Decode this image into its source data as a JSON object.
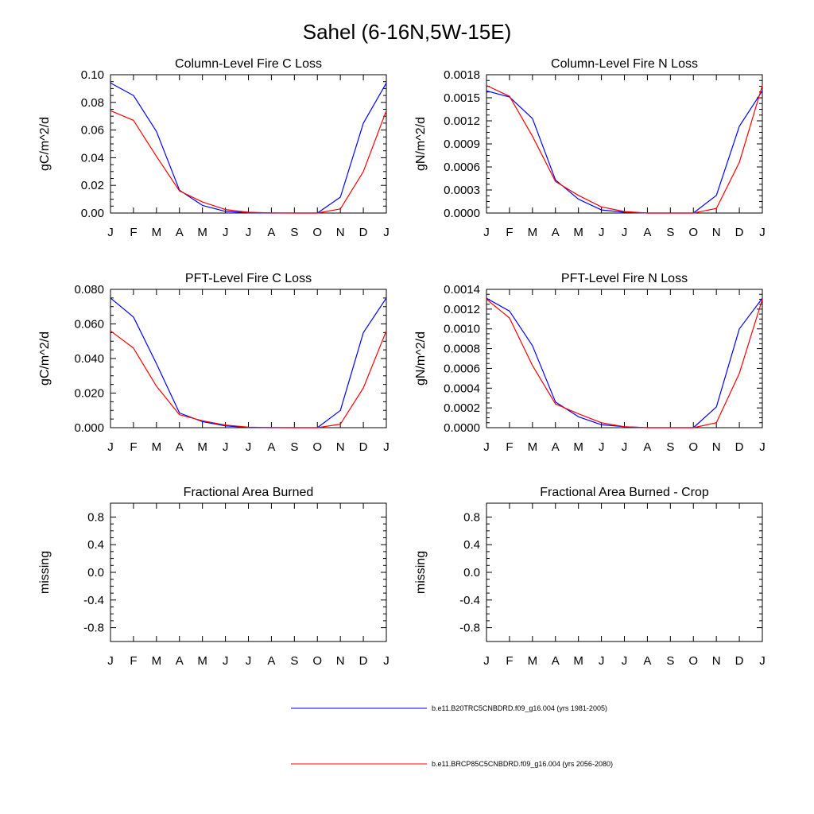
{
  "chart_data": {
    "suptitle": "Sahel (6-16N,5W-15E)",
    "series_colors": [
      "#0000ff",
      "#ff0000"
    ],
    "legend": [
      {
        "label": "b.e11.B20TRC5CNBDRD.f09_g16.004 (yrs 1981-2005)",
        "color": "#0000ff"
      },
      {
        "label": "b.e11.BRCP85C5CNBDRD.f09_g16.004 (yrs 2056-2080)",
        "color": "#ff0000"
      }
    ],
    "panels": [
      {
        "type": "line",
        "title": "Column-Level Fire C Loss",
        "xlabel": "",
        "ylabel": "gC/m^2/d",
        "categories": [
          "J",
          "F",
          "M",
          "A",
          "M",
          "J",
          "J",
          "A",
          "S",
          "O",
          "N",
          "D",
          "J"
        ],
        "ylim": [
          0,
          0.1
        ],
        "yticks": [
          0,
          0.02,
          0.04,
          0.06,
          0.08,
          0.1
        ],
        "ytick_labels": [
          "0.00",
          "0.02",
          "0.04",
          "0.06",
          "0.08",
          "0.10"
        ],
        "series": [
          {
            "name": "b.e11.B20TRC5CNBDRD.f09_g16.004 (yrs 1981-2005)",
            "values": [
              0.094,
              0.085,
              0.059,
              0.0165,
              0.0055,
              0.0012,
              0.0002,
              0.0,
              0.0,
              0.0,
              0.0115,
              0.065,
              0.094
            ]
          },
          {
            "name": "b.e11.BRCP85C5CNBDRD.f09_g16.004 (yrs 2056-2080)",
            "values": [
              0.074,
              0.067,
              0.041,
              0.016,
              0.008,
              0.0025,
              0.0006,
              0.0001,
              0.0,
              0.0,
              0.003,
              0.03,
              0.074
            ]
          }
        ]
      },
      {
        "type": "line",
        "title": "Column-Level Fire N Loss",
        "xlabel": "",
        "ylabel": "gN/m^2/d",
        "categories": [
          "J",
          "F",
          "M",
          "A",
          "M",
          "J",
          "J",
          "A",
          "S",
          "O",
          "N",
          "D",
          "J"
        ],
        "ylim": [
          0,
          0.0018
        ],
        "yticks": [
          0,
          0.0003,
          0.0006,
          0.0009,
          0.0012,
          0.0015,
          0.0018
        ],
        "ytick_labels": [
          "0.0000",
          "0.0003",
          "0.0006",
          "0.0009",
          "0.0012",
          "0.0015",
          "0.0018"
        ],
        "series": [
          {
            "name": "b.e11.B20TRC5CNBDRD.f09_g16.004 (yrs 1981-2005)",
            "values": [
              0.00159,
              0.00151,
              0.00123,
              0.00043,
              0.00018,
              4e-05,
              1e-05,
              0.0,
              0.0,
              0.0,
              0.00023,
              0.00113,
              0.00159
            ]
          },
          {
            "name": "b.e11.BRCP85C5CNBDRD.f09_g16.004 (yrs 2056-2080)",
            "values": [
              0.00166,
              0.00152,
              0.001,
              0.00041,
              0.00023,
              8e-05,
              2e-05,
              0.0,
              0.0,
              0.0,
              6e-05,
              0.00066,
              0.00166
            ]
          }
        ]
      },
      {
        "type": "line",
        "title": "PFT-Level Fire C Loss",
        "xlabel": "",
        "ylabel": "gC/m^2/d",
        "categories": [
          "J",
          "F",
          "M",
          "A",
          "M",
          "J",
          "J",
          "A",
          "S",
          "O",
          "N",
          "D",
          "J"
        ],
        "ylim": [
          0,
          0.08
        ],
        "yticks": [
          0,
          0.02,
          0.04,
          0.06,
          0.08
        ],
        "ytick_labels": [
          "0.000",
          "0.020",
          "0.040",
          "0.060",
          "0.080"
        ],
        "series": [
          {
            "name": "b.e11.B20TRC5CNBDRD.f09_g16.004 (yrs 1981-2005)",
            "values": [
              0.075,
              0.064,
              0.037,
              0.0085,
              0.0035,
              0.001,
              0.0002,
              0.0,
              0.0,
              0.0,
              0.01,
              0.055,
              0.075
            ]
          },
          {
            "name": "b.e11.BRCP85C5CNBDRD.f09_g16.004 (yrs 2056-2080)",
            "values": [
              0.056,
              0.046,
              0.024,
              0.0075,
              0.004,
              0.0015,
              0.0003,
              0.0001,
              0.0,
              0.0,
              0.002,
              0.023,
              0.056
            ]
          }
        ]
      },
      {
        "type": "line",
        "title": "PFT-Level Fire N Loss",
        "xlabel": "",
        "ylabel": "gN/m^2/d",
        "categories": [
          "J",
          "F",
          "M",
          "A",
          "M",
          "J",
          "J",
          "A",
          "S",
          "O",
          "N",
          "D",
          "J"
        ],
        "ylim": [
          0,
          0.0014
        ],
        "yticks": [
          0,
          0.0002,
          0.0004,
          0.0006,
          0.0008,
          0.001,
          0.0012,
          0.0014
        ],
        "ytick_labels": [
          "0.0000",
          "0.0002",
          "0.0004",
          "0.0006",
          "0.0008",
          "0.0010",
          "0.0012",
          "0.0014"
        ],
        "series": [
          {
            "name": "b.e11.B20TRC5CNBDRD.f09_g16.004 (yrs 1981-2005)",
            "values": [
              0.00131,
              0.00118,
              0.00083,
              0.00026,
              0.00011,
              3e-05,
              1e-05,
              0.0,
              0.0,
              0.0,
              0.00021,
              0.001,
              0.00131
            ]
          },
          {
            "name": "b.e11.BRCP85C5CNBDRD.f09_g16.004 (yrs 2056-2080)",
            "values": [
              0.0013,
              0.00111,
              0.00063,
              0.00024,
              0.00014,
              5e-05,
              1e-05,
              0.0,
              0.0,
              0.0,
              5e-05,
              0.00055,
              0.0013
            ]
          }
        ]
      },
      {
        "type": "line",
        "title": "Fractional Area Burned",
        "xlabel": "",
        "ylabel": "missing",
        "categories": [
          "J",
          "F",
          "M",
          "A",
          "M",
          "J",
          "J",
          "A",
          "S",
          "O",
          "N",
          "D",
          "J"
        ],
        "ylim": [
          -1,
          1
        ],
        "yticks": [
          -0.8,
          -0.4,
          0.0,
          0.4,
          0.8
        ],
        "ytick_labels": [
          "-0.8",
          "-0.4",
          "0.0",
          "0.4",
          "0.8"
        ],
        "series": []
      },
      {
        "type": "line",
        "title": "Fractional Area Burned - Crop",
        "xlabel": "",
        "ylabel": "missing",
        "categories": [
          "J",
          "F",
          "M",
          "A",
          "M",
          "J",
          "J",
          "A",
          "S",
          "O",
          "N",
          "D",
          "J"
        ],
        "ylim": [
          -1,
          1
        ],
        "yticks": [
          -0.8,
          -0.4,
          0.0,
          0.4,
          0.8
        ],
        "ytick_labels": [
          "-0.8",
          "-0.4",
          "0.0",
          "0.4",
          "0.8"
        ],
        "series": []
      }
    ]
  }
}
